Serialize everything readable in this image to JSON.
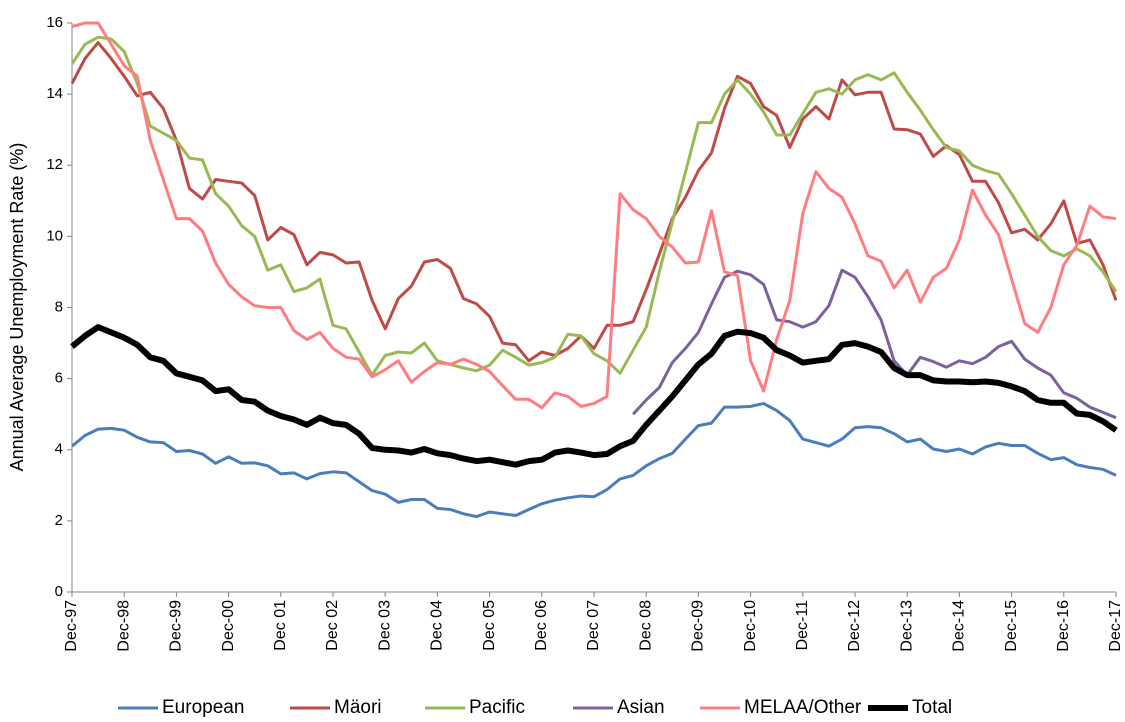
{
  "chart_data": {
    "type": "line",
    "y_label": "Annual Average Unemployment Rate  (%)",
    "categories": [
      "Dec-97",
      null,
      null,
      null,
      "Dec-98",
      null,
      null,
      null,
      "Dec-99",
      null,
      null,
      null,
      "Dec-00",
      null,
      null,
      null,
      "Dec 01",
      null,
      null,
      null,
      "Dec 02",
      null,
      null,
      null,
      "Dec 03",
      null,
      null,
      null,
      "Dec 04",
      null,
      null,
      null,
      "Dec 05",
      null,
      null,
      null,
      "Dec 06",
      null,
      null,
      null,
      "Dec 07",
      null,
      null,
      null,
      "Dec 08",
      null,
      null,
      null,
      "Dec-09",
      null,
      null,
      null,
      "Dec-10",
      null,
      null,
      null,
      "Dec-11",
      null,
      null,
      null,
      "Dec-12",
      null,
      null,
      null,
      "Dec-13",
      null,
      null,
      null,
      "Dec-14",
      null,
      null,
      null,
      "Dec-15",
      null,
      null,
      null,
      "Dec-16",
      null,
      null,
      null,
      "Dec-17"
    ],
    "ylim": [
      0,
      16
    ],
    "yticks": [
      0,
      2,
      4,
      6,
      8,
      10,
      12,
      14,
      16
    ],
    "grid": false,
    "legend": "bottom",
    "series": [
      {
        "name": "European",
        "color": "#4a7ebb",
        "width": 3,
        "values": [
          4.1,
          4.4,
          4.58,
          4.6,
          4.55,
          4.35,
          4.22,
          4.2,
          3.95,
          3.98,
          3.88,
          3.62,
          3.8,
          3.62,
          3.63,
          3.55,
          3.32,
          3.35,
          3.18,
          3.33,
          3.38,
          3.35,
          3.1,
          2.85,
          2.75,
          2.52,
          2.6,
          2.6,
          2.35,
          2.32,
          2.2,
          2.12,
          2.25,
          2.2,
          2.15,
          2.32,
          2.48,
          2.58,
          2.65,
          2.7,
          2.68,
          2.88,
          3.18,
          3.28,
          3.55,
          3.75,
          3.9,
          4.3,
          4.68,
          4.75,
          5.2,
          5.2,
          5.22,
          5.3,
          5.1,
          4.82,
          4.3,
          4.2,
          4.1,
          4.3,
          4.62,
          4.65,
          4.62,
          4.45,
          4.22,
          4.3,
          4.02,
          3.95,
          4.02,
          3.88,
          4.08,
          4.18,
          4.12,
          4.12,
          3.9,
          3.72,
          3.78,
          3.58,
          3.5,
          3.45,
          3.28
        ]
      },
      {
        "name": "Mäori",
        "color": "#be4b48",
        "width": 3,
        "values": [
          14.3,
          15.0,
          15.45,
          15.0,
          14.5,
          13.95,
          14.05,
          13.6,
          12.7,
          11.35,
          11.05,
          11.6,
          11.55,
          11.5,
          11.15,
          9.9,
          10.25,
          10.05,
          9.2,
          9.55,
          9.48,
          9.25,
          9.28,
          8.2,
          7.4,
          8.25,
          8.6,
          9.28,
          9.35,
          9.1,
          8.25,
          8.1,
          7.75,
          7.0,
          6.95,
          6.5,
          6.75,
          6.65,
          6.85,
          7.2,
          6.85,
          7.5,
          7.5,
          7.6,
          8.5,
          9.5,
          10.5,
          11.1,
          11.85,
          12.35,
          13.6,
          14.5,
          14.3,
          13.65,
          13.4,
          12.5,
          13.3,
          13.65,
          13.3,
          14.4,
          13.98,
          14.05,
          14.05,
          13.02,
          13.0,
          12.88,
          12.25,
          12.55,
          12.3,
          11.55,
          11.55,
          10.95,
          10.1,
          10.2,
          9.9,
          10.35,
          11.0,
          9.8,
          9.9,
          9.2,
          8.2
        ]
      },
      {
        "name": "Pacific",
        "color": "#98b954",
        "width": 3,
        "values": [
          14.85,
          15.4,
          15.6,
          15.55,
          15.2,
          14.3,
          13.1,
          12.9,
          12.7,
          12.2,
          12.15,
          11.2,
          10.85,
          10.3,
          10.0,
          9.05,
          9.2,
          8.45,
          8.55,
          8.8,
          7.5,
          7.4,
          6.75,
          6.1,
          6.65,
          6.75,
          6.72,
          7.0,
          6.5,
          6.4,
          6.3,
          6.22,
          6.38,
          6.8,
          6.6,
          6.38,
          6.45,
          6.6,
          7.25,
          7.2,
          6.7,
          6.5,
          6.15,
          6.8,
          7.45,
          9.0,
          10.4,
          11.8,
          13.2,
          13.2,
          14.0,
          14.4,
          14.0,
          13.5,
          12.85,
          12.85,
          13.45,
          14.05,
          14.15,
          14.0,
          14.4,
          14.55,
          14.4,
          14.6,
          14.05,
          13.55,
          13.0,
          12.5,
          12.4,
          12.0,
          11.85,
          11.75,
          11.2,
          10.6,
          10.0,
          9.6,
          9.45,
          9.65,
          9.45,
          9.0,
          8.45
        ]
      },
      {
        "name": "Asian",
        "color": "#7d60a0",
        "width": 3,
        "values": [
          null,
          null,
          null,
          null,
          null,
          null,
          null,
          null,
          null,
          null,
          null,
          null,
          null,
          null,
          null,
          null,
          null,
          null,
          null,
          null,
          null,
          null,
          null,
          null,
          null,
          null,
          null,
          null,
          null,
          null,
          null,
          null,
          null,
          null,
          null,
          null,
          null,
          null,
          null,
          null,
          null,
          null,
          null,
          5.0,
          5.4,
          5.75,
          6.45,
          6.85,
          7.3,
          8.1,
          8.85,
          9.02,
          8.92,
          8.65,
          7.65,
          7.6,
          7.45,
          7.6,
          8.05,
          9.05,
          8.85,
          8.3,
          7.65,
          6.5,
          6.1,
          6.6,
          6.48,
          6.32,
          6.5,
          6.42,
          6.6,
          6.9,
          7.05,
          6.55,
          6.3,
          6.1,
          5.6,
          5.45,
          5.2,
          5.05,
          4.9
        ]
      },
      {
        "name": "MELAA/Other",
        "color": "#ff7c80",
        "width": 3,
        "values": [
          15.9,
          16.0,
          16.0,
          15.4,
          14.8,
          14.5,
          12.7,
          11.6,
          10.5,
          10.5,
          10.15,
          9.25,
          8.65,
          8.3,
          8.05,
          8.0,
          8.0,
          7.35,
          7.1,
          7.3,
          6.85,
          6.6,
          6.55,
          6.05,
          6.25,
          6.5,
          5.9,
          6.2,
          6.45,
          6.4,
          6.55,
          6.4,
          6.2,
          5.8,
          5.42,
          5.42,
          5.18,
          5.6,
          5.5,
          5.22,
          5.3,
          5.5,
          11.2,
          10.75,
          10.5,
          10.0,
          9.7,
          9.25,
          9.28,
          10.72,
          9.0,
          8.9,
          6.5,
          5.65,
          7.1,
          8.2,
          10.65,
          11.82,
          11.35,
          11.1,
          10.35,
          9.45,
          9.3,
          8.55,
          9.05,
          8.15,
          8.85,
          9.1,
          9.9,
          11.3,
          10.6,
          10.05,
          8.8,
          7.55,
          7.3,
          8.0,
          9.2,
          9.75,
          10.85,
          10.55,
          10.5
        ]
      },
      {
        "name": "Total",
        "color": "#000000",
        "width": 6,
        "values": [
          6.9,
          7.2,
          7.45,
          7.3,
          7.15,
          6.95,
          6.6,
          6.5,
          6.15,
          6.05,
          5.95,
          5.65,
          5.7,
          5.4,
          5.35,
          5.1,
          4.95,
          4.85,
          4.7,
          4.9,
          4.75,
          4.7,
          4.45,
          4.05,
          4.0,
          3.98,
          3.92,
          4.02,
          3.9,
          3.85,
          3.75,
          3.68,
          3.72,
          3.65,
          3.58,
          3.68,
          3.72,
          3.92,
          3.98,
          3.92,
          3.85,
          3.88,
          4.1,
          4.25,
          4.7,
          5.1,
          5.5,
          5.95,
          6.4,
          6.7,
          7.2,
          7.32,
          7.28,
          7.15,
          6.8,
          6.65,
          6.45,
          6.5,
          6.55,
          6.95,
          7.0,
          6.9,
          6.75,
          6.3,
          6.1,
          6.1,
          5.95,
          5.92,
          5.92,
          5.9,
          5.92,
          5.88,
          5.78,
          5.65,
          5.4,
          5.32,
          5.32,
          5.02,
          4.98,
          4.8,
          4.55
        ]
      }
    ]
  }
}
